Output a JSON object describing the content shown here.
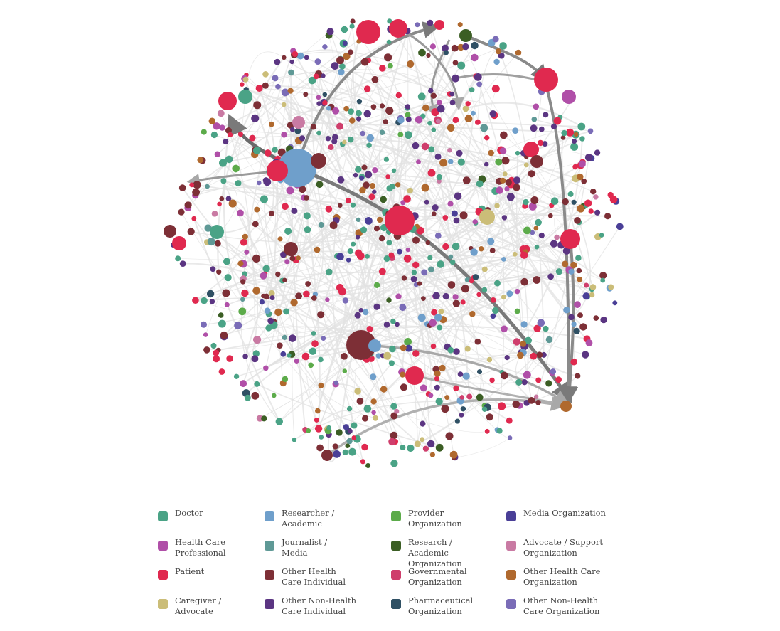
{
  "legend": {
    "items": [
      {
        "label": "Doctor",
        "color": "#4aa386"
      },
      {
        "label": "Health Care\nProfessional",
        "color": "#b04fa8"
      },
      {
        "label": "Patient",
        "color": "#e0294f"
      },
      {
        "label": "Caregiver /\nAdvocate",
        "color": "#cbbd78"
      },
      {
        "label": "Researcher /\nAcademic",
        "color": "#6f9fcb"
      },
      {
        "label": "Journalist /\nMedia",
        "color": "#5f9996"
      },
      {
        "label": "Other Health\nCare Individual",
        "color": "#7d2f36"
      },
      {
        "label": "Other Non-Health\nCare Individual",
        "color": "#5b3582"
      },
      {
        "label": "Provider\nOrganization",
        "color": "#5cab4a"
      },
      {
        "label": "Research / Academic\nOrganization",
        "color": "#3b5e24"
      },
      {
        "label": "Governmental\nOrganization",
        "color": "#cf3e6c"
      },
      {
        "label": "Pharmaceutical\nOrganization",
        "color": "#2f5064"
      },
      {
        "label": "Media Organization",
        "color": "#4a3f97"
      },
      {
        "label": "Advocate / Support\nOrganization",
        "color": "#c97aa3"
      },
      {
        "label": "Other Health Care\nOrganization",
        "color": "#b0692e"
      },
      {
        "label": "Other Non-Health\nCare Organization",
        "color": "#7a6cb7"
      }
    ]
  },
  "network": {
    "edge_color": "#e2e2e2",
    "highlight_edge_color": "#8a8a8a"
  }
}
